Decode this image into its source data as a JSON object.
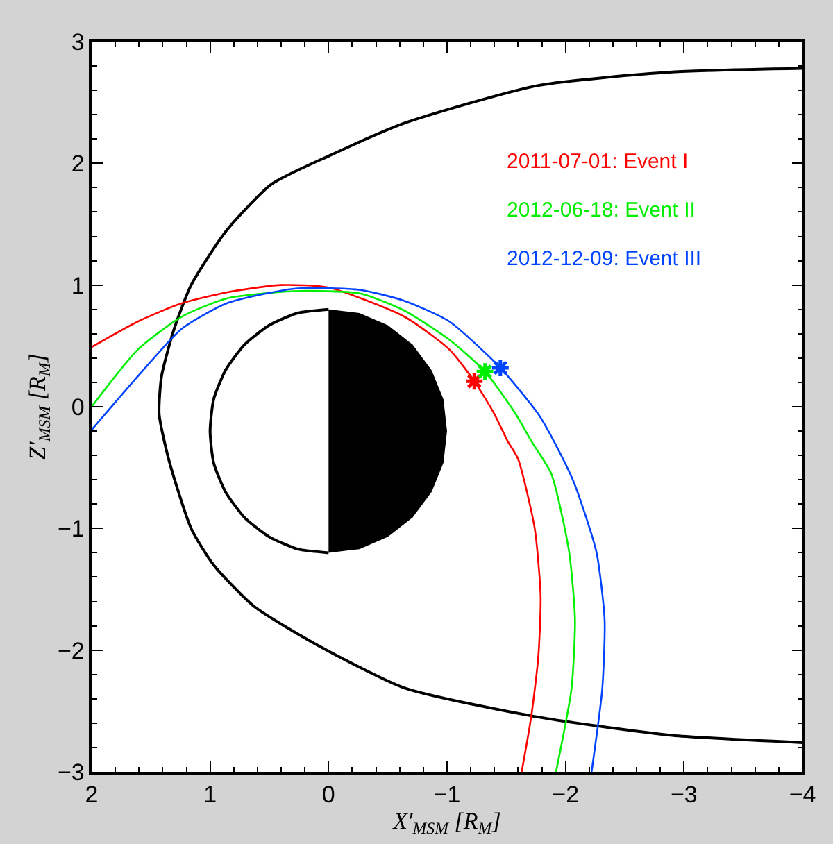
{
  "chart_data": {
    "type": "line",
    "xlabel": "X′$_{MSM}$ [R$_{M}$]",
    "ylabel": "Z′$_{MSM}$ [R$_{M}$]",
    "xlim": [
      2,
      -4
    ],
    "ylim": [
      -3,
      3
    ],
    "xticks": [
      2,
      1,
      0,
      -1,
      -2,
      -3,
      -4
    ],
    "yticks": [
      -3,
      -2,
      -1,
      0,
      1,
      2,
      3
    ],
    "legend": "top right",
    "marker": "none",
    "line_style": "solid",
    "series": [
      {
        "color": "#000000",
        "x": [
          -4.0,
          -2.9,
          -1.77,
          -0.64,
          0,
          0.48,
          0.86,
          1.16,
          1.31,
          1.41,
          1.43,
          1.35,
          1.16,
          0.97,
          0.63,
          0.11,
          -0.64,
          -1.77,
          -2.9,
          -4.0
        ],
        "values": [
          2.78,
          2.75,
          2.64,
          2.33,
          2.06,
          1.83,
          1.45,
          1.0,
          0.62,
          0.25,
          -0.06,
          -0.43,
          -1.0,
          -1.3,
          -1.64,
          -1.95,
          -2.31,
          -2.55,
          -2.7,
          -2.76
        ]
      },
      {
        "color": "#000000",
        "x": [
          0,
          0.26,
          0.5,
          0.71,
          0.87,
          0.97,
          1,
          0.97,
          0.87,
          0.71,
          0.5,
          0.26,
          0
        ],
        "values": [
          0.8,
          0.77,
          0.67,
          0.51,
          0.3,
          0.06,
          -0.2,
          -0.46,
          -0.7,
          -0.91,
          -1.07,
          -1.17,
          -1.2
        ]
      },
      {
        "name": "2011-07-01: Event I",
        "color": "#ff0000",
        "x": [
          2,
          1.61,
          1.24,
          0.86,
          0.41,
          0,
          -0.64,
          -1.02,
          -1.23,
          -1.4,
          -1.51,
          -1.6,
          -1.74,
          -1.79,
          -1.77,
          -1.71,
          -1.63
        ],
        "values": [
          0.49,
          0.7,
          0.85,
          0.94,
          1.0,
          0.98,
          0.74,
          0.47,
          0.21,
          -0.06,
          -0.28,
          -0.43,
          -1.0,
          -1.56,
          -2.06,
          -2.55,
          -3.0
        ]
      },
      {
        "name": "2012-06-18: Event II",
        "color": "#00ee00",
        "x": [
          2,
          1.61,
          1.24,
          0.86,
          0.29,
          -0.27,
          -0.64,
          -1.02,
          -1.32,
          -1.58,
          -1.71,
          -1.88,
          -2.03,
          -2.08,
          -2.05,
          -1.92
        ],
        "values": [
          0.0,
          0.47,
          0.74,
          0.89,
          0.95,
          0.93,
          0.79,
          0.55,
          0.29,
          -0.06,
          -0.28,
          -0.55,
          -1.19,
          -1.75,
          -2.32,
          -3.0
        ]
      },
      {
        "name": "2012-12-09: Event III",
        "color": "#0044ff",
        "x": [
          2,
          1.61,
          1.24,
          0.86,
          0.29,
          -0.27,
          -0.64,
          -1.02,
          -1.45,
          -1.77,
          -1.9,
          -2.07,
          -2.26,
          -2.33,
          -2.31,
          -2.22
        ],
        "values": [
          -0.19,
          0.25,
          0.64,
          0.85,
          0.97,
          0.96,
          0.87,
          0.7,
          0.32,
          -0.06,
          -0.28,
          -0.62,
          -1.19,
          -1.75,
          -2.32,
          -3.0
        ]
      },
      {
        "type": "scatter",
        "marker": "cross",
        "color": "#ff0000",
        "x": [
          -1.23
        ],
        "values": [
          0.21
        ]
      },
      {
        "type": "scatter",
        "marker": "cross",
        "color": "#00ee00",
        "x": [
          -1.32
        ],
        "values": [
          0.29
        ]
      },
      {
        "type": "scatter",
        "marker": "cross",
        "color": "#0044ff",
        "x": [
          -1.45
        ],
        "values": [
          0.32
        ]
      },
      {
        "type": "area",
        "color": "#000000",
        "x": [
          0,
          -0.26,
          -0.5,
          -0.71,
          -0.87,
          -0.97,
          -1,
          -0.97,
          -0.87,
          -0.71,
          -0.5,
          -0.26,
          0,
          0
        ],
        "values": [
          0.8,
          0.77,
          0.67,
          0.51,
          0.3,
          0.06,
          -0.2,
          -0.46,
          -0.7,
          -0.91,
          -1.07,
          -1.17,
          -1.2,
          0.8
        ]
      }
    ]
  }
}
